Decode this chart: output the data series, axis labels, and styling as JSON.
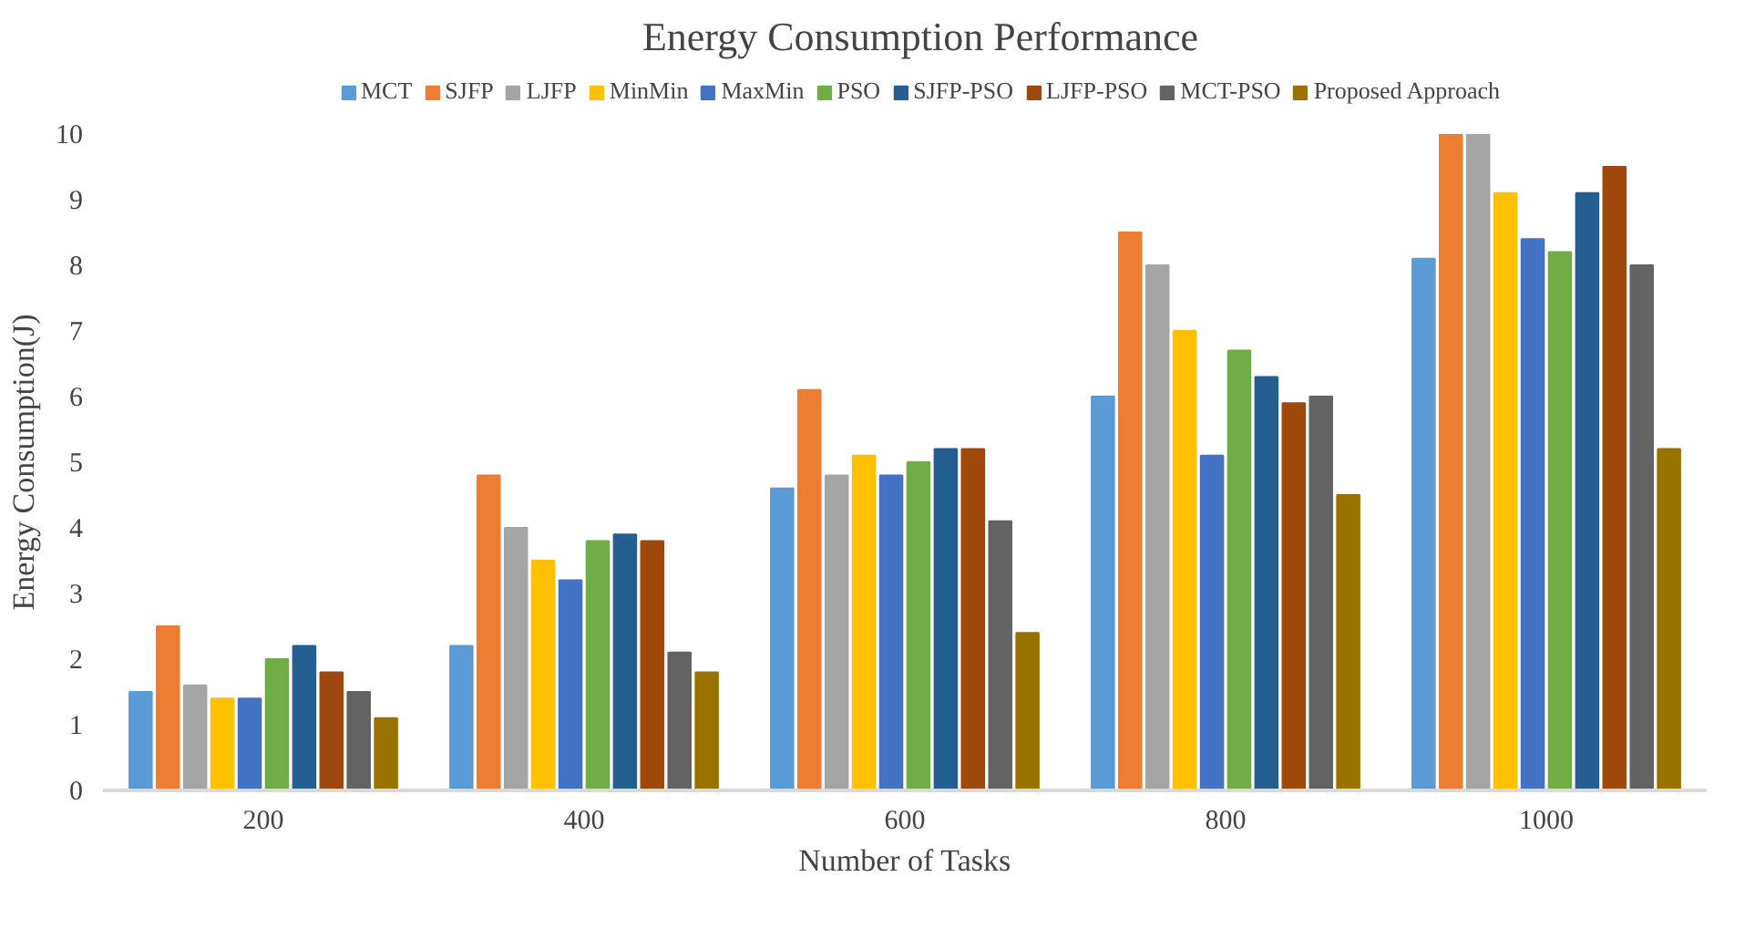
{
  "chart_data": {
    "type": "bar",
    "title": "Energy Consumption Performance",
    "xlabel": "Number of Tasks",
    "ylabel": "Energy Consumption(J)",
    "categories": [
      "200",
      "400",
      "600",
      "800",
      "1000"
    ],
    "ylim": [
      0,
      10
    ],
    "yticks": [
      0,
      1,
      2,
      3,
      4,
      5,
      6,
      7,
      8,
      9,
      10
    ],
    "grid": false,
    "legend": "top",
    "series": [
      {
        "name": "MCT",
        "color": "#5b9bd5",
        "values": [
          1.5,
          2.2,
          4.6,
          6.0,
          8.1
        ]
      },
      {
        "name": "SJFP",
        "color": "#ed7d31",
        "values": [
          2.5,
          4.8,
          6.1,
          8.5,
          10.0
        ]
      },
      {
        "name": "LJFP",
        "color": "#a5a5a5",
        "values": [
          1.6,
          4.0,
          4.8,
          8.0,
          10.0
        ]
      },
      {
        "name": "MinMin",
        "color": "#ffc000",
        "values": [
          1.4,
          3.5,
          5.1,
          7.0,
          9.1
        ]
      },
      {
        "name": "MaxMin",
        "color": "#4472c4",
        "values": [
          1.4,
          3.2,
          4.8,
          5.1,
          8.4
        ]
      },
      {
        "name": "PSO",
        "color": "#70ad47",
        "values": [
          2.0,
          3.8,
          5.0,
          6.7,
          8.2
        ]
      },
      {
        "name": "SJFP-PSO",
        "color": "#255e91",
        "values": [
          2.2,
          3.9,
          5.2,
          6.3,
          9.1
        ]
      },
      {
        "name": "LJFP-PSO",
        "color": "#9e480e",
        "values": [
          1.8,
          3.8,
          5.2,
          5.9,
          9.5
        ]
      },
      {
        "name": "MCT-PSO",
        "color": "#636363",
        "values": [
          1.5,
          2.1,
          4.1,
          6.0,
          8.0
        ]
      },
      {
        "name": "Proposed Approach",
        "color": "#997300",
        "values": [
          1.1,
          1.8,
          2.4,
          4.5,
          5.2
        ]
      }
    ]
  }
}
